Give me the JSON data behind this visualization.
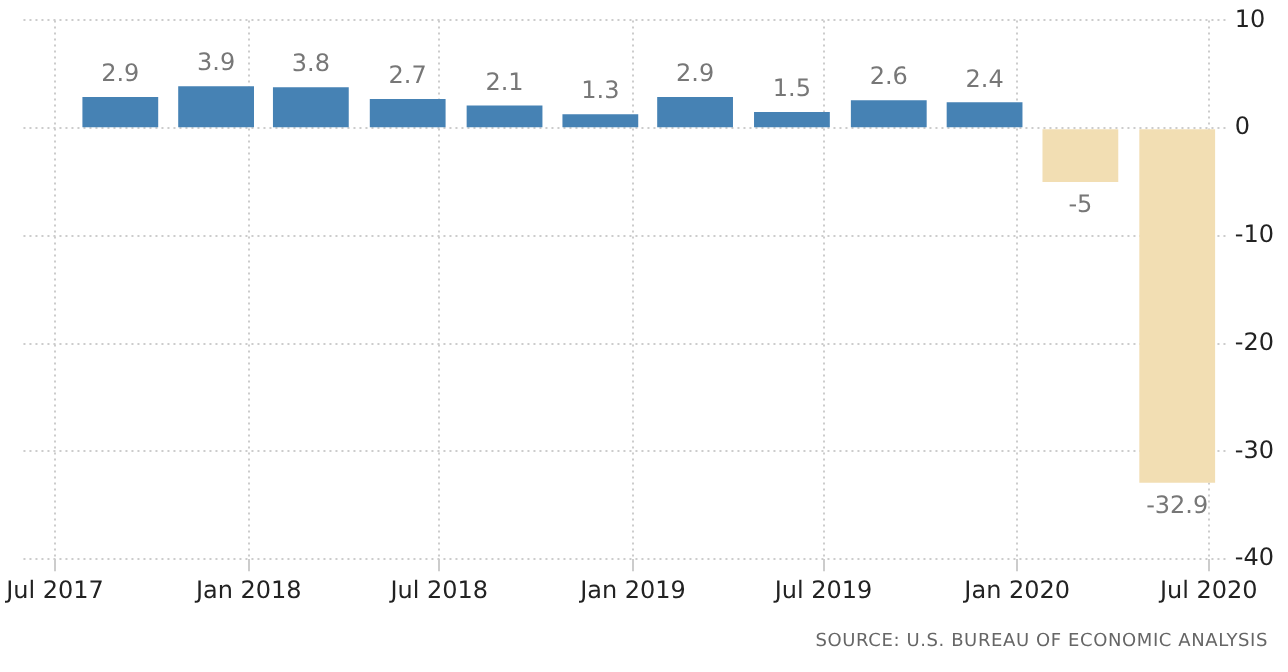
{
  "chart_data": {
    "type": "bar",
    "x": [
      "2017-09",
      "2017-12",
      "2018-03",
      "2018-06",
      "2018-09",
      "2018-12",
      "2019-03",
      "2019-06",
      "2019-09",
      "2019-12",
      "2020-03",
      "2020-06"
    ],
    "values": [
      2.9,
      3.9,
      3.8,
      2.7,
      2.1,
      1.3,
      2.9,
      1.5,
      2.6,
      2.4,
      -5,
      -32.9
    ],
    "colors": [
      "#4682b4",
      "#4682b4",
      "#4682b4",
      "#4682b4",
      "#4682b4",
      "#4682b4",
      "#4682b4",
      "#4682b4",
      "#4682b4",
      "#4682b4",
      "#f2deb3",
      "#f2deb3"
    ],
    "data_labels": true,
    "xlim": [
      "2017-06-01",
      "2020-07-20"
    ],
    "xticks": [
      {
        "value": "2017-07",
        "label": "Jul 2017"
      },
      {
        "value": "2018-01",
        "label": "Jan 2018"
      },
      {
        "value": "2018-07",
        "label": "Jul 2018"
      },
      {
        "value": "2019-01",
        "label": "Jan 2019"
      },
      {
        "value": "2019-07",
        "label": "Jul 2019"
      },
      {
        "value": "2020-01",
        "label": "Jan 2020"
      },
      {
        "value": "2020-07",
        "label": "Jul 2020"
      }
    ],
    "ylim": [
      -40,
      10
    ],
    "yticks": [
      -40,
      -30,
      -20,
      -10,
      0,
      10
    ],
    "grid": true,
    "legend": false,
    "annotations": [
      "SOURCE: U.S. BUREAU OF ECONOMIC ANALYSIS"
    ]
  }
}
